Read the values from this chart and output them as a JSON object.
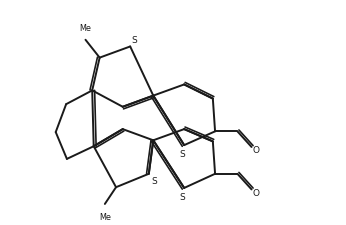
{
  "background_color": "#ffffff",
  "line_color": "#1a1a1a",
  "line_width": 1.4,
  "figsize": [
    3.46,
    2.26
  ],
  "dpi": 100,
  "xlim": [
    0,
    8.5
  ],
  "ylim": [
    0,
    5.8
  ]
}
